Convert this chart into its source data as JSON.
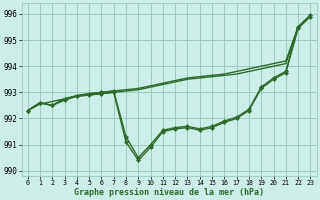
{
  "background_color": "#cceee8",
  "grid_color": "#99ccbb",
  "line_color": "#2d6a2d",
  "xlabel": "Graphe pression niveau de la mer (hPa)",
  "ylim": [
    989.8,
    996.4
  ],
  "xlim": [
    -0.5,
    23.5
  ],
  "yticks": [
    990,
    991,
    992,
    993,
    994,
    995,
    996
  ],
  "xticks": [
    0,
    1,
    2,
    3,
    4,
    5,
    6,
    7,
    8,
    9,
    10,
    11,
    12,
    13,
    14,
    15,
    16,
    17,
    18,
    19,
    20,
    21,
    22,
    23
  ],
  "series": [
    {
      "x": [
        0,
        1,
        2,
        3,
        4,
        5,
        6,
        7,
        8,
        9,
        10,
        11,
        12,
        13,
        14,
        15,
        16,
        17,
        18,
        19,
        20,
        21,
        22,
        23
      ],
      "y": [
        992.3,
        992.55,
        992.65,
        992.75,
        992.85,
        992.9,
        992.95,
        993.0,
        993.05,
        993.1,
        993.2,
        993.3,
        993.4,
        993.5,
        993.55,
        993.6,
        993.65,
        993.7,
        993.8,
        993.9,
        994.0,
        994.1,
        995.5,
        995.95
      ],
      "marker": null,
      "linewidth": 1.0
    },
    {
      "x": [
        0,
        1,
        2,
        3,
        4,
        5,
        6,
        7,
        8,
        9,
        10,
        11,
        12,
        13,
        14,
        15,
        16,
        17,
        18,
        19,
        20,
        21,
        22,
        23
      ],
      "y": [
        992.3,
        992.6,
        992.5,
        992.7,
        992.85,
        992.9,
        992.95,
        993.0,
        991.1,
        990.4,
        990.9,
        991.5,
        991.6,
        991.65,
        991.55,
        991.65,
        991.85,
        992.0,
        992.3,
        993.15,
        993.5,
        993.75,
        995.45,
        995.9
      ],
      "marker": "D",
      "markersize": 2.0,
      "linewidth": 1.0
    },
    {
      "x": [
        0,
        1,
        2,
        3,
        4,
        5,
        6,
        7,
        8,
        9,
        10,
        11,
        12,
        13,
        14,
        15,
        16,
        17,
        18,
        19,
        20,
        21,
        22,
        23
      ],
      "y": [
        992.3,
        992.6,
        992.5,
        992.75,
        992.87,
        992.95,
        993.0,
        993.05,
        993.1,
        993.15,
        993.25,
        993.35,
        993.45,
        993.55,
        993.6,
        993.65,
        993.7,
        993.8,
        993.9,
        994.0,
        994.1,
        994.2,
        995.5,
        995.95
      ],
      "marker": null,
      "linewidth": 1.0
    },
    {
      "x": [
        0,
        1,
        2,
        3,
        4,
        5,
        6,
        7,
        8,
        9,
        10,
        11,
        12,
        13,
        14,
        15,
        16,
        17,
        18,
        19,
        20,
        21,
        22,
        23
      ],
      "y": [
        992.3,
        992.6,
        992.5,
        992.75,
        992.87,
        992.95,
        993.0,
        993.05,
        991.3,
        990.5,
        991.0,
        991.55,
        991.65,
        991.7,
        991.6,
        991.7,
        991.9,
        992.05,
        992.35,
        993.2,
        993.55,
        993.8,
        995.5,
        995.95
      ],
      "marker": "D",
      "markersize": 2.0,
      "linewidth": 1.0
    }
  ]
}
